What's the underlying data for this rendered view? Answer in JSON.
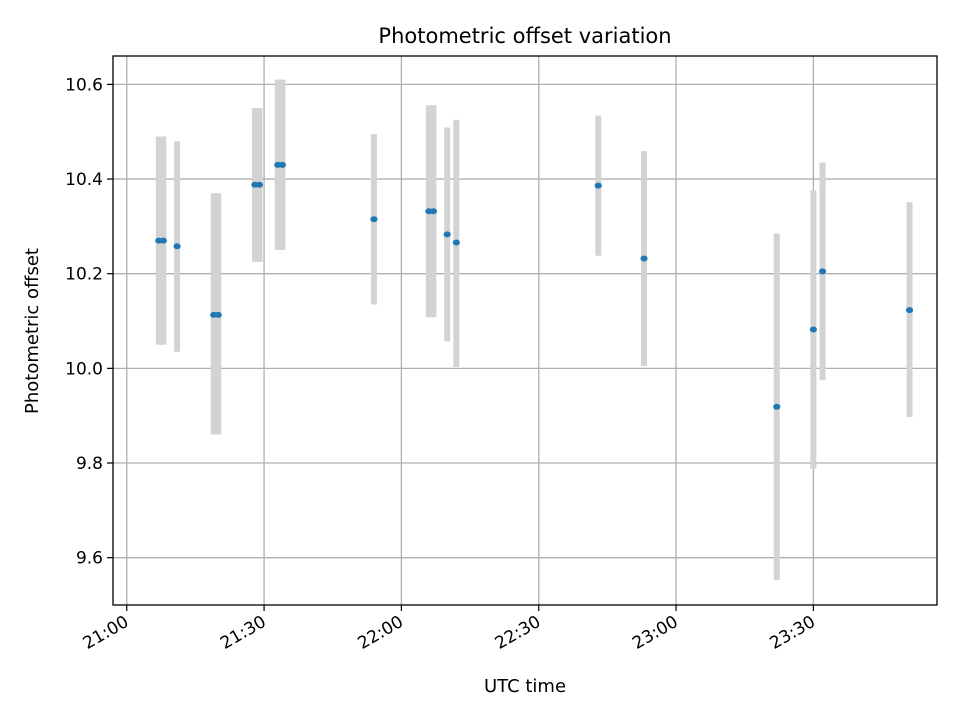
{
  "chart_data": {
    "type": "scatter",
    "title": "Photometric offset variation",
    "xlabel": "UTC time",
    "ylabel": "Photometric offset",
    "x_unit": "UTC HH:MM",
    "xlim": [
      "20:57",
      "23:57"
    ],
    "ylim": [
      9.5,
      10.66
    ],
    "xticks": [
      "21:00",
      "21:30",
      "22:00",
      "22:30",
      "23:00",
      "23:30"
    ],
    "yticks": [
      9.6,
      9.8,
      10.0,
      10.2,
      10.4,
      10.6
    ],
    "grid": true,
    "colors": {
      "point": "#1f77b4",
      "errorbar": "#d3d3d3",
      "grid": "#b0b0b0"
    },
    "points": [
      {
        "x": "21:07",
        "y": 10.27,
        "ylow": 10.05,
        "yhigh": 10.49
      },
      {
        "x": "21:08",
        "y": 10.27,
        "ylow": 10.05,
        "yhigh": 10.49
      },
      {
        "x": "21:11",
        "y": 10.258,
        "ylow": 10.035,
        "yhigh": 10.48
      },
      {
        "x": "21:19",
        "y": 10.113,
        "ylow": 9.86,
        "yhigh": 10.37
      },
      {
        "x": "21:20",
        "y": 10.113,
        "ylow": 9.86,
        "yhigh": 10.37
      },
      {
        "x": "21:28",
        "y": 10.388,
        "ylow": 10.225,
        "yhigh": 10.55
      },
      {
        "x": "21:29",
        "y": 10.388,
        "ylow": 10.225,
        "yhigh": 10.55
      },
      {
        "x": "21:33",
        "y": 10.43,
        "ylow": 10.25,
        "yhigh": 10.61
      },
      {
        "x": "21:34",
        "y": 10.43,
        "ylow": 10.25,
        "yhigh": 10.61
      },
      {
        "x": "21:54",
        "y": 10.315,
        "ylow": 10.135,
        "yhigh": 10.495
      },
      {
        "x": "22:06",
        "y": 10.332,
        "ylow": 10.108,
        "yhigh": 10.556
      },
      {
        "x": "22:07",
        "y": 10.332,
        "ylow": 10.108,
        "yhigh": 10.556
      },
      {
        "x": "22:10",
        "y": 10.283,
        "ylow": 10.057,
        "yhigh": 10.509
      },
      {
        "x": "22:12",
        "y": 10.266,
        "ylow": 10.003,
        "yhigh": 10.525
      },
      {
        "x": "22:43",
        "y": 10.386,
        "ylow": 10.238,
        "yhigh": 10.534
      },
      {
        "x": "22:53",
        "y": 10.232,
        "ylow": 10.005,
        "yhigh": 10.459
      },
      {
        "x": "23:22",
        "y": 9.919,
        "ylow": 9.553,
        "yhigh": 10.285
      },
      {
        "x": "23:30",
        "y": 10.082,
        "ylow": 9.788,
        "yhigh": 10.376
      },
      {
        "x": "23:32",
        "y": 10.205,
        "ylow": 9.975,
        "yhigh": 10.435
      },
      {
        "x": "23:51",
        "y": 10.123,
        "ylow": 9.897,
        "yhigh": 10.351
      }
    ]
  }
}
